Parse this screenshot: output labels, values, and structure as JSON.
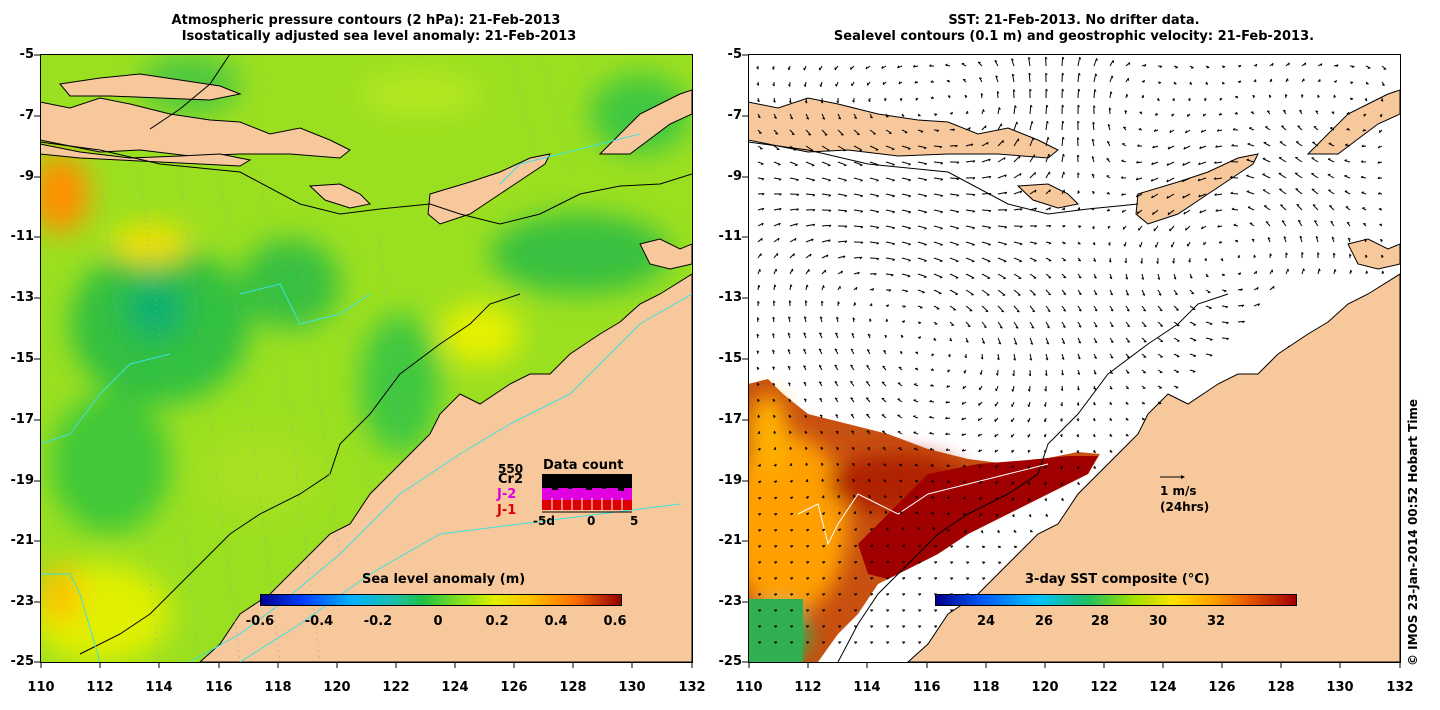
{
  "left_panel": {
    "title_line1": "Atmospheric pressure contours (2 hPa): 21-Feb-2013",
    "title_line2": "Isostatically adjusted sea level anomaly: 21-Feb-2013",
    "colorbar_label": "Sea level anomaly (m)",
    "colorbar_ticks": [
      "-0.6",
      "-0.4",
      "-0.2",
      "0",
      "0.2",
      "0.4",
      "0.6"
    ],
    "data_count": {
      "title": "Data count",
      "number": "550",
      "missions": [
        "Cr2",
        "J-2",
        "J-1"
      ],
      "mission_colors": [
        "#000000",
        "#e000e0",
        "#e00000"
      ],
      "axis_ticks": [
        "-5d",
        "0",
        "5"
      ]
    }
  },
  "right_panel": {
    "title_line1": "SST: 21-Feb-2013. No drifter data.",
    "title_line2": "Sealevel contours (0.1 m) and geostrophic velocity: 21-Feb-2013.",
    "colorbar_label": "3-day SST composite (°C)",
    "colorbar_ticks": [
      "24",
      "26",
      "28",
      "30",
      "32"
    ],
    "velocity_scale": {
      "label": "1 m/s",
      "sublabel": "(24hrs)"
    }
  },
  "axes": {
    "lat_labels": [
      "-5",
      "-7",
      "-9",
      "-11",
      "-13",
      "-15",
      "-17",
      "-19",
      "-21",
      "-23",
      "-25"
    ],
    "lon_labels": [
      "110",
      "112",
      "114",
      "116",
      "118",
      "120",
      "122",
      "124",
      "126",
      "128",
      "130",
      "132"
    ]
  },
  "credit": "© IMOS 23-Jan-2014 00:52 Hobart Time",
  "colors": {
    "land": "#f7c89b",
    "coastline": "#000000",
    "sla_colormap": [
      "#000090",
      "#0040ff",
      "#00b0ff",
      "#20c0a0",
      "#20c040",
      "#80e020",
      "#e0f000",
      "#ffc000",
      "#ff7000",
      "#d02000",
      "#900000"
    ],
    "sst_colormap": [
      "#000090",
      "#0060ff",
      "#00c0ff",
      "#20c060",
      "#a0e000",
      "#ffe000",
      "#ffa000",
      "#e05000",
      "#a00000"
    ]
  }
}
